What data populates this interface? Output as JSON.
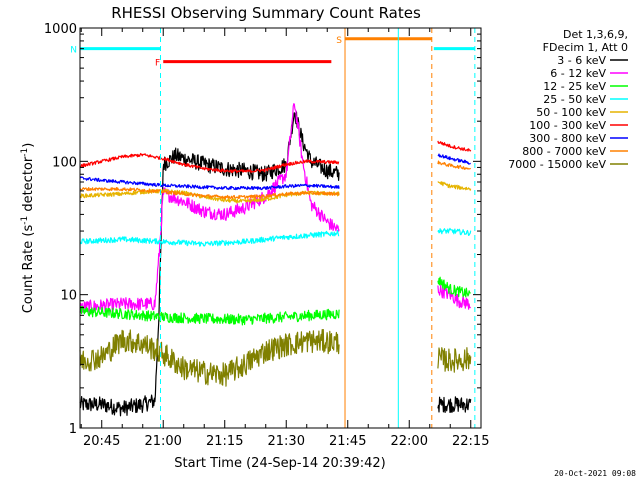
{
  "chart_data": {
    "type": "line",
    "title": "RHESSI Observing Summary Count Rates",
    "xlabel": "Start Time (24-Sep-14 20:39:42)",
    "ylabel_main": "Count Rate (s",
    "ylabel_sup1": "-1",
    "ylabel_mid": " detector",
    "ylabel_sup2": "-1",
    "ylabel_end": ")",
    "y_scale": "log",
    "ylim": [
      1,
      1000
    ],
    "xlim": [
      "20:39:42",
      "22:17:30"
    ],
    "x_ticks": [
      "20:45",
      "21:00",
      "21:15",
      "21:30",
      "21:45",
      "22:00",
      "22:15"
    ],
    "y_ticks": [
      "1",
      "10",
      "100",
      "1000"
    ],
    "grid": false,
    "footer": "20-Oct-2021 09:08",
    "legend": {
      "placement": "right",
      "header": [
        "Det 1,3,6,9,",
        "FDecim 1, Att 0"
      ],
      "entries": [
        {
          "label": "3 - 6 keV",
          "color": "#000000"
        },
        {
          "label": "6 - 12 keV",
          "color": "#ff00ff"
        },
        {
          "label": "12 - 25 keV",
          "color": "#00ff00"
        },
        {
          "label": "25 - 50 keV",
          "color": "#00ffff"
        },
        {
          "label": "50 - 100 keV",
          "color": "#e6b400"
        },
        {
          "label": "100 - 300 keV",
          "color": "#ff0000"
        },
        {
          "label": "300 - 800 keV",
          "color": "#0000ff"
        },
        {
          "label": "800 - 7000 keV",
          "color": "#ff8000"
        },
        {
          "label": "7000 - 15000 keV",
          "color": "#808000"
        }
      ]
    },
    "intervals": [
      {
        "label": "N",
        "color": "#00ffff",
        "start": "20:39:42",
        "end": "20:59:20",
        "level": 700
      },
      {
        "label": "F",
        "color": "#ff0000",
        "start": "21:00:00",
        "end": "21:41:00",
        "level": 560
      },
      {
        "label": "S",
        "color": "#ff8000",
        "start": "21:44:20",
        "end": "22:05:30",
        "level": 830
      },
      {
        "label": "",
        "color": "#00ffff",
        "start": "22:06:00",
        "end": "22:16:00",
        "level": 700
      }
    ],
    "markers": [
      {
        "time": "20:59:20",
        "color": "#00ffff",
        "style": "dashed"
      },
      {
        "time": "21:44:20",
        "color": "#ff8000",
        "style": "solid"
      },
      {
        "time": "21:57:20",
        "color": "#00ffff",
        "style": "solid"
      },
      {
        "time": "22:05:30",
        "color": "#ff8000",
        "style": "dashed"
      },
      {
        "time": "22:16:00",
        "color": "#00ffff",
        "style": "dashed"
      }
    ],
    "series": [
      {
        "name": "3 - 6 keV",
        "color": "#000000",
        "noise": 0.06,
        "segments": [
          {
            "x": [
              "20:39:42",
              "20:45",
              "20:50",
              "20:55",
              "20:58",
              "20:59",
              "21:00",
              "21:03",
              "21:10",
              "21:15",
              "21:20",
              "21:25",
              "21:30",
              "21:32",
              "21:34",
              "21:36",
              "21:40",
              "21:43"
            ],
            "y": [
              1.5,
              1.5,
              1.4,
              1.5,
              1.6,
              8,
              95,
              110,
              95,
              88,
              85,
              80,
              95,
              240,
              140,
              100,
              85,
              80
            ]
          },
          {
            "x": [
              "22:07",
              "22:10",
              "22:12",
              "22:15"
            ],
            "y": [
              1.5,
              1.5,
              1.5,
              1.5
            ]
          }
        ]
      },
      {
        "name": "6 - 12 keV",
        "color": "#ff00ff",
        "noise": 0.05,
        "segments": [
          {
            "x": [
              "20:39:42",
              "20:50",
              "20:58",
              "20:59",
              "21:00",
              "21:05",
              "21:10",
              "21:15",
              "21:20",
              "21:25",
              "21:30",
              "21:32",
              "21:34",
              "21:36",
              "21:40",
              "21:43"
            ],
            "y": [
              8,
              8.5,
              8.5,
              20,
              58,
              50,
              42,
              40,
              45,
              55,
              80,
              280,
              100,
              48,
              35,
              30
            ]
          },
          {
            "x": [
              "22:07",
              "22:10",
              "22:12",
              "22:15"
            ],
            "y": [
              11,
              10,
              9,
              8.5
            ]
          }
        ]
      },
      {
        "name": "12 - 25 keV",
        "color": "#00ff00",
        "noise": 0.04,
        "segments": [
          {
            "x": [
              "20:39:42",
              "20:50",
              "21:00",
              "21:10",
              "21:20",
              "21:30",
              "21:43"
            ],
            "y": [
              7.5,
              7.2,
              6.8,
              6.6,
              6.5,
              6.8,
              7.2
            ]
          },
          {
            "x": [
              "22:07",
              "22:10",
              "22:15"
            ],
            "y": [
              13,
              11,
              10
            ]
          }
        ]
      },
      {
        "name": "25 - 50 keV",
        "color": "#00ffff",
        "noise": 0.02,
        "segments": [
          {
            "x": [
              "20:39:42",
              "20:50",
              "21:00",
              "21:10",
              "21:20",
              "21:30",
              "21:43"
            ],
            "y": [
              25,
              26,
              25,
              24,
              25,
              27,
              29
            ]
          },
          {
            "x": [
              "22:07",
              "22:10",
              "22:15"
            ],
            "y": [
              30,
              30,
              29
            ]
          }
        ]
      },
      {
        "name": "50 - 100 keV",
        "color": "#e6b400",
        "noise": 0.015,
        "segments": [
          {
            "x": [
              "20:39:42",
              "20:50",
              "20:55",
              "21:00",
              "21:05",
              "21:10",
              "21:15",
              "21:20",
              "21:25",
              "21:30",
              "21:35",
              "21:43"
            ],
            "y": [
              55,
              57,
              59,
              60,
              58,
              54,
              51,
              50,
              52,
              56,
              58,
              57
            ]
          },
          {
            "x": [
              "22:07",
              "22:10",
              "22:15"
            ],
            "y": [
              70,
              65,
              62
            ]
          }
        ]
      },
      {
        "name": "100 - 300 keV",
        "color": "#ff0000",
        "noise": 0.012,
        "segments": [
          {
            "x": [
              "20:39:42",
              "20:45",
              "20:50",
              "20:55",
              "21:00",
              "21:05",
              "21:10",
              "21:15",
              "21:20",
              "21:25",
              "21:30",
              "21:35",
              "21:43"
            ],
            "y": [
              92,
              100,
              108,
              112,
              105,
              95,
              88,
              85,
              84,
              86,
              95,
              100,
              98
            ]
          },
          {
            "x": [
              "22:07",
              "22:10",
              "22:15"
            ],
            "y": [
              140,
              130,
              120
            ]
          }
        ]
      },
      {
        "name": "300 - 800 keV",
        "color": "#0000ff",
        "noise": 0.012,
        "segments": [
          {
            "x": [
              "20:39:42",
              "20:45",
              "20:50",
              "20:55",
              "21:00",
              "21:05",
              "21:10",
              "21:15",
              "21:20",
              "21:25",
              "21:30",
              "21:35",
              "21:43"
            ],
            "y": [
              75,
              72,
              70,
              68,
              66,
              65,
              64,
              63,
              63,
              63,
              65,
              66,
              64
            ]
          },
          {
            "x": [
              "22:07",
              "22:10",
              "22:15"
            ],
            "y": [
              112,
              105,
              97
            ]
          }
        ]
      },
      {
        "name": "800 - 7000 keV",
        "color": "#ff8000",
        "noise": 0.012,
        "segments": [
          {
            "x": [
              "20:39:42",
              "20:45",
              "20:50",
              "20:55",
              "21:00",
              "21:05",
              "21:10",
              "21:15",
              "21:20",
              "21:25",
              "21:30",
              "21:35",
              "21:43"
            ],
            "y": [
              62,
              62,
              62,
              61,
              59,
              57,
              55,
              54,
              54,
              55,
              57,
              58,
              57
            ]
          },
          {
            "x": [
              "22:07",
              "22:10",
              "22:15"
            ],
            "y": [
              98,
              93,
              88
            ]
          }
        ]
      },
      {
        "name": "7000 - 15000 keV",
        "color": "#808000",
        "noise": 0.09,
        "segments": [
          {
            "x": [
              "20:39:42",
              "20:45",
              "20:50",
              "20:55",
              "21:00",
              "21:05",
              "21:10",
              "21:15",
              "21:20",
              "21:25",
              "21:30",
              "21:35",
              "21:43"
            ],
            "y": [
              3.2,
              3.4,
              4.6,
              4.3,
              3.6,
              2.8,
              2.6,
              2.5,
              3.0,
              3.8,
              4.2,
              4.5,
              4.4
            ]
          },
          {
            "x": [
              "22:07",
              "22:10",
              "22:15"
            ],
            "y": [
              3.3,
              3.2,
              3.3
            ]
          }
        ]
      }
    ]
  }
}
